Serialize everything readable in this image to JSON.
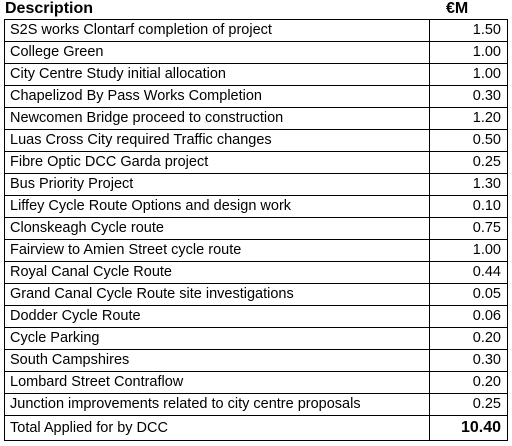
{
  "header": {
    "description_label": "Description",
    "amount_label": "€M"
  },
  "rows": [
    {
      "description": "S2S works Clontarf completion of project",
      "amount": "1.50"
    },
    {
      "description": "College Green",
      "amount": "1.00"
    },
    {
      "description": "City Centre Study initial allocation",
      "amount": "1.00"
    },
    {
      "description": "Chapelizod By Pass Works Completion",
      "amount": "0.30"
    },
    {
      "description": "Newcomen Bridge proceed to construction",
      "amount": "1.20"
    },
    {
      "description": "Luas Cross City required Traffic changes",
      "amount": "0.50"
    },
    {
      "description": "Fibre Optic DCC Garda project",
      "amount": "0.25"
    },
    {
      "description": "Bus Priority Project",
      "amount": "1.30"
    },
    {
      "description": "Liffey Cycle Route Options and design work",
      "amount": "0.10"
    },
    {
      "description": "Clonskeagh Cycle route",
      "amount": "0.75"
    },
    {
      "description": "Fairview to Amien Street cycle route",
      "amount": "1.00"
    },
    {
      "description": "Royal Canal Cycle Route",
      "amount": "0.44"
    },
    {
      "description": "Grand Canal Cycle Route site investigations",
      "amount": "0.05"
    },
    {
      "description": "Dodder Cycle Route",
      "amount": "0.06"
    },
    {
      "description": "Cycle Parking",
      "amount": "0.20"
    },
    {
      "description": "South Campshires",
      "amount": "0.30"
    },
    {
      "description": "Lombard Street Contraflow",
      "amount": "0.20"
    },
    {
      "description": "Junction improvements related to city centre proposals",
      "amount": "0.25"
    }
  ],
  "total": {
    "description": "Total Applied for by DCC",
    "amount": "10.40"
  }
}
